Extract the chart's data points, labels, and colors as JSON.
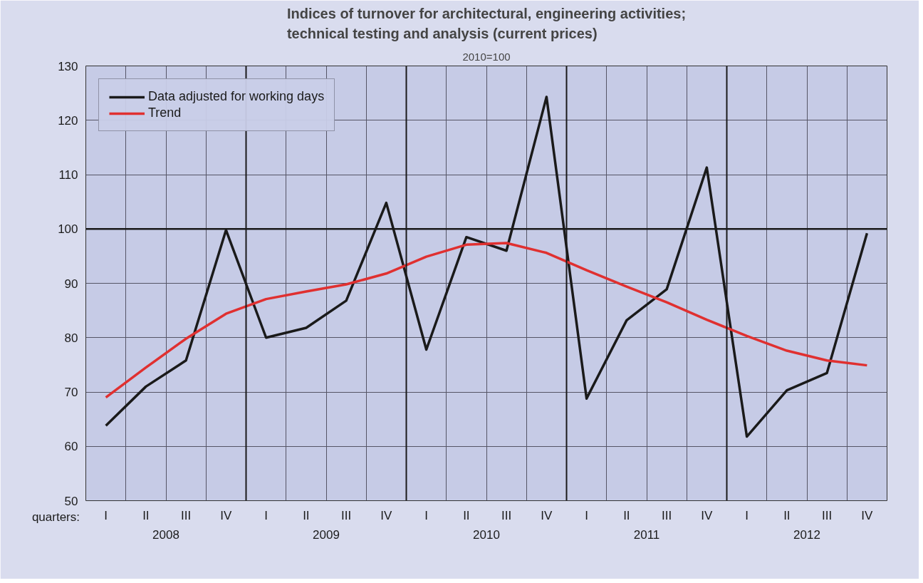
{
  "chart_data": {
    "type": "line",
    "title": "Indices of turnover for architectural, engineering activities; technical testing and analysis (current prices)",
    "subtitle": "2010=100",
    "xlabel": "quarters:",
    "categories": [
      "I",
      "II",
      "III",
      "IV",
      "I",
      "II",
      "III",
      "IV",
      "I",
      "II",
      "III",
      "IV",
      "I",
      "II",
      "III",
      "IV",
      "I",
      "II",
      "III",
      "IV"
    ],
    "annotations": [
      "2008",
      "2009",
      "2010",
      "2011",
      "2012"
    ],
    "series": [
      {
        "name": "Data adjusted for working days",
        "color": "#1a1a1a",
        "values": [
          63.8,
          71.0,
          75.8,
          99.8,
          80.0,
          81.8,
          86.8,
          104.8,
          77.8,
          98.5,
          96.0,
          124.3,
          68.8,
          83.2,
          88.9,
          111.3,
          61.8,
          70.3,
          73.5,
          99.2
        ]
      },
      {
        "name": "Trend",
        "color": "#e03030",
        "values": [
          69.0,
          74.5,
          79.8,
          84.4,
          87.1,
          88.5,
          89.8,
          91.8,
          94.9,
          97.1,
          97.4,
          95.6,
          92.4,
          89.4,
          86.5,
          83.3,
          80.3,
          77.6,
          75.8,
          74.9
        ]
      }
    ],
    "ylim": [
      50,
      130
    ],
    "yticks": [
      50,
      60,
      70,
      80,
      90,
      100,
      110,
      120,
      130
    ],
    "ref_lines": [
      {
        "axis": "y",
        "value": 100,
        "color": "#1a1a1a"
      }
    ],
    "grid": true,
    "legend": "top left",
    "marker": "none",
    "line_style": "solid"
  }
}
